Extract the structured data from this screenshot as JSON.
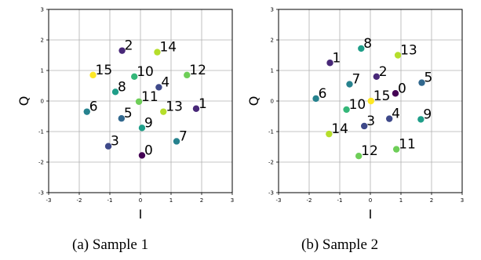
{
  "colors": {
    "viridis": [
      "#440154",
      "#482878",
      "#3e4989",
      "#31688e",
      "#26828e",
      "#1f9e89",
      "#35b779",
      "#6ece58",
      "#b5de2b",
      "#fde725"
    ],
    "grid": "#b0b0b0",
    "axis": "#000000"
  },
  "chart_data": [
    {
      "type": "scatter",
      "xlabel": "I",
      "ylabel": "Q",
      "xlim": [
        -3,
        3
      ],
      "ylim": [
        -3,
        3
      ],
      "xticks": [
        -3,
        -2,
        -1,
        0,
        1,
        2,
        3
      ],
      "yticks": [
        -3,
        -2,
        -1,
        0,
        1,
        2,
        3
      ],
      "grid": true,
      "caption": "(a) Sample 1",
      "points": [
        {
          "label": "0",
          "x": 0.05,
          "y": -1.78
        },
        {
          "label": "1",
          "x": 1.82,
          "y": -0.25
        },
        {
          "label": "2",
          "x": -0.6,
          "y": 1.65
        },
        {
          "label": "3",
          "x": -1.05,
          "y": -1.48
        },
        {
          "label": "4",
          "x": 0.6,
          "y": 0.45
        },
        {
          "label": "5",
          "x": -0.62,
          "y": -0.57
        },
        {
          "label": "6",
          "x": -1.75,
          "y": -0.35
        },
        {
          "label": "7",
          "x": 1.18,
          "y": -1.32
        },
        {
          "label": "8",
          "x": -0.82,
          "y": 0.3
        },
        {
          "label": "9",
          "x": 0.05,
          "y": -0.88
        },
        {
          "label": "10",
          "x": -0.2,
          "y": 0.8
        },
        {
          "label": "11",
          "x": -0.05,
          "y": -0.02
        },
        {
          "label": "12",
          "x": 1.52,
          "y": 0.85
        },
        {
          "label": "13",
          "x": 0.75,
          "y": -0.35
        },
        {
          "label": "14",
          "x": 0.55,
          "y": 1.6
        },
        {
          "label": "15",
          "x": -1.55,
          "y": 0.85
        }
      ]
    },
    {
      "type": "scatter",
      "xlabel": "I",
      "ylabel": "Q",
      "xlim": [
        -3,
        3
      ],
      "ylim": [
        -3,
        3
      ],
      "xticks": [
        -3,
        -2,
        -1,
        0,
        1,
        2,
        3
      ],
      "yticks": [
        -3,
        -2,
        -1,
        0,
        1,
        2,
        3
      ],
      "grid": true,
      "caption": "(b) Sample 2",
      "points": [
        {
          "label": "0",
          "x": 0.82,
          "y": 0.25
        },
        {
          "label": "1",
          "x": -1.32,
          "y": 1.25
        },
        {
          "label": "2",
          "x": 0.2,
          "y": 0.8
        },
        {
          "label": "3",
          "x": -0.2,
          "y": -0.82
        },
        {
          "label": "4",
          "x": 0.62,
          "y": -0.58
        },
        {
          "label": "5",
          "x": 1.68,
          "y": 0.6
        },
        {
          "label": "6",
          "x": -1.78,
          "y": 0.08
        },
        {
          "label": "7",
          "x": -0.68,
          "y": 0.55
        },
        {
          "label": "8",
          "x": -0.3,
          "y": 1.72
        },
        {
          "label": "9",
          "x": 1.65,
          "y": -0.6
        },
        {
          "label": "10",
          "x": -0.78,
          "y": -0.28
        },
        {
          "label": "11",
          "x": 0.85,
          "y": -1.58
        },
        {
          "label": "12",
          "x": -0.38,
          "y": -1.8
        },
        {
          "label": "13",
          "x": 0.9,
          "y": 1.5
        },
        {
          "label": "14",
          "x": -1.35,
          "y": -1.08
        },
        {
          "label": "15",
          "x": 0.02,
          "y": 0.0
        }
      ]
    }
  ]
}
